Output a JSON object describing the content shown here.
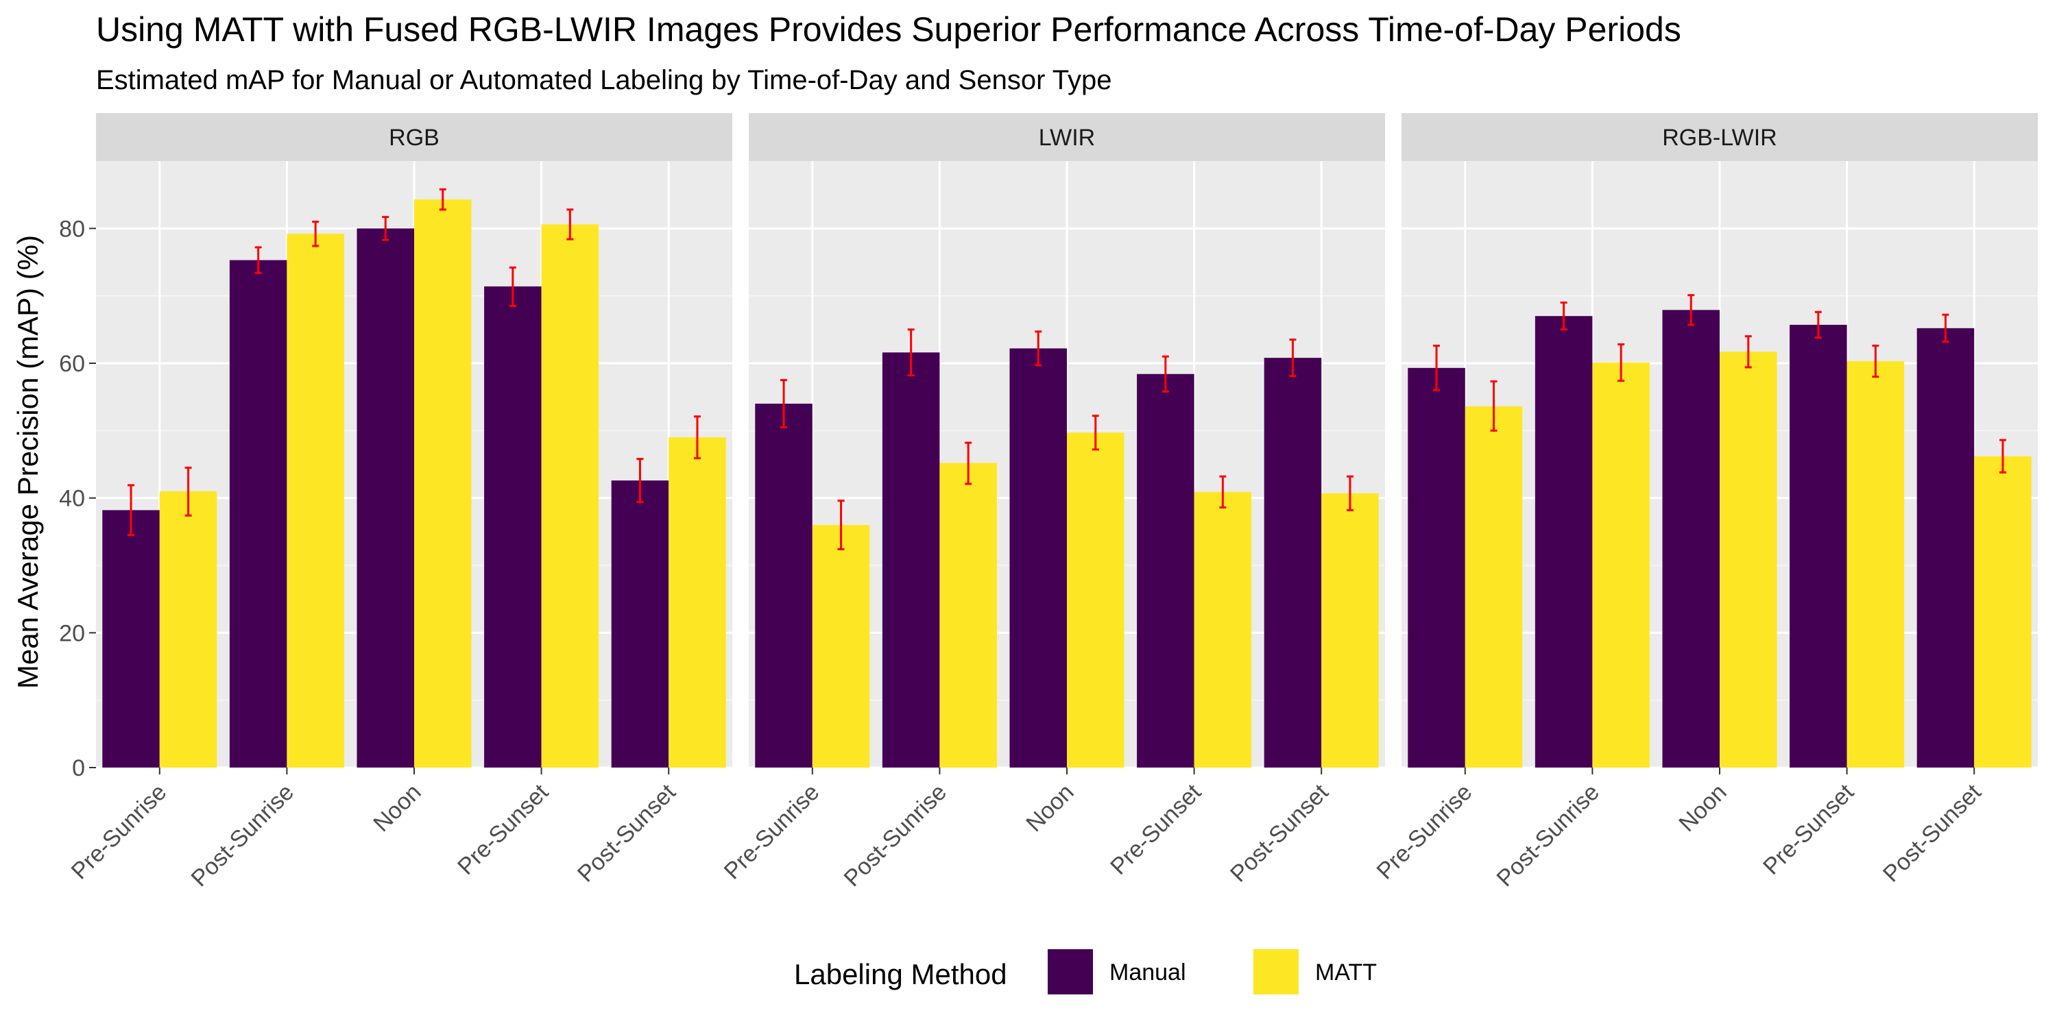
{
  "chart_data": {
    "type": "bar",
    "title": "Using MATT with Fused RGB-LWIR Images Provides Superior Performance Across Time-of-Day Periods",
    "subtitle": "Estimated mAP for Manual or Automated Labeling by Time-of-Day and Sensor Type",
    "ylabel": "Mean Average Precision (mAP) (%)",
    "xlabel": "",
    "ylim": [
      0,
      90
    ],
    "yticks": [
      0,
      20,
      40,
      60,
      80
    ],
    "grid": true,
    "categories": [
      "Pre-Sunrise",
      "Post-Sunrise",
      "Noon",
      "Pre-Sunset",
      "Post-Sunset"
    ],
    "legend": {
      "title": "Labeling Method",
      "position": "bottom",
      "items": [
        {
          "name": "Manual",
          "color": "#440154"
        },
        {
          "name": "MATT",
          "color": "#FDE725"
        }
      ]
    },
    "error_bar_color": "#FF0000",
    "panels": [
      {
        "name": "RGB",
        "series": [
          {
            "name": "Manual",
            "values": [
              38.2,
              75.3,
              80.0,
              71.4,
              42.6
            ],
            "lower": [
              34.5,
              73.4,
              78.3,
              68.5,
              39.4
            ],
            "upper": [
              41.9,
              77.2,
              81.7,
              74.2,
              45.8
            ]
          },
          {
            "name": "MATT",
            "values": [
              41.0,
              79.2,
              84.3,
              80.6,
              49.0
            ],
            "lower": [
              37.4,
              77.4,
              82.8,
              78.4,
              45.9
            ],
            "upper": [
              44.5,
              81.0,
              85.8,
              82.8,
              52.1
            ]
          }
        ]
      },
      {
        "name": "LWIR",
        "series": [
          {
            "name": "Manual",
            "values": [
              54.0,
              61.6,
              62.2,
              58.4,
              60.8
            ],
            "lower": [
              50.5,
              58.2,
              59.7,
              55.8,
              58.1
            ],
            "upper": [
              57.5,
              65.0,
              64.7,
              61.0,
              63.5
            ]
          },
          {
            "name": "MATT",
            "values": [
              36.0,
              45.2,
              49.7,
              40.9,
              40.7
            ],
            "lower": [
              32.4,
              42.1,
              47.2,
              38.6,
              38.2
            ],
            "upper": [
              39.6,
              48.2,
              52.2,
              43.2,
              43.2
            ]
          }
        ]
      },
      {
        "name": "RGB-LWIR",
        "series": [
          {
            "name": "Manual",
            "values": [
              59.3,
              67.0,
              67.9,
              65.7,
              65.2
            ],
            "lower": [
              56.0,
              65.0,
              65.7,
              63.8,
              63.2
            ],
            "upper": [
              62.6,
              69.0,
              70.1,
              67.6,
              67.2
            ]
          },
          {
            "name": "MATT",
            "values": [
              53.6,
              60.1,
              61.7,
              60.3,
              46.2
            ],
            "lower": [
              50.0,
              57.4,
              59.4,
              58.0,
              43.8
            ],
            "upper": [
              57.3,
              62.8,
              64.0,
              62.6,
              48.6
            ]
          }
        ]
      }
    ]
  }
}
